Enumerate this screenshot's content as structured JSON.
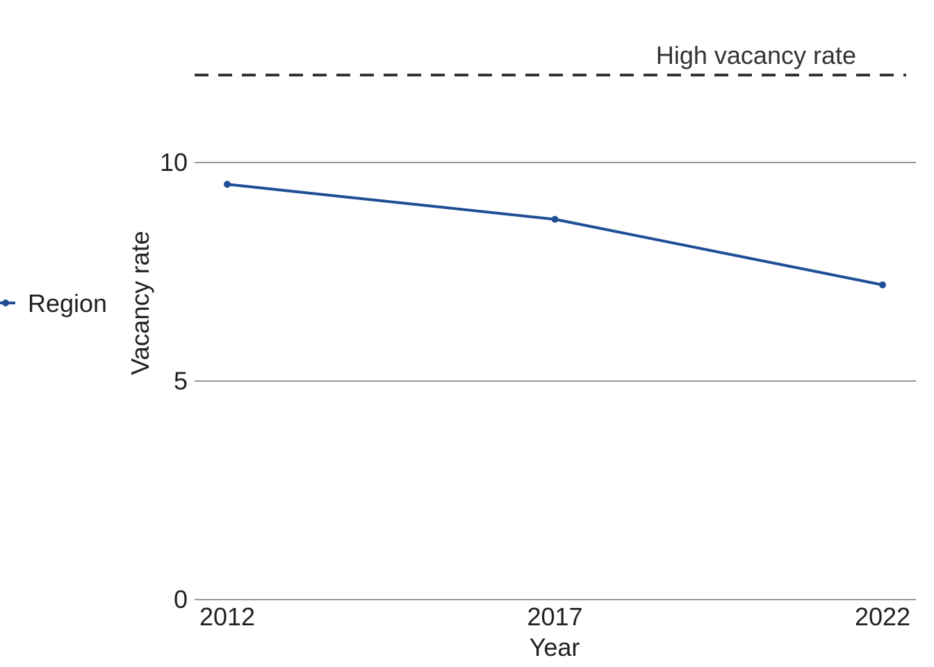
{
  "chart_data": {
    "type": "line",
    "xlabel": "Year",
    "ylabel": "Vacancy rate",
    "x": [
      2012,
      2017,
      2022
    ],
    "xticks": [
      "2012",
      "2017",
      "2022"
    ],
    "yticks": [
      "0",
      "5",
      "10"
    ],
    "ylim": [
      0,
      12
    ],
    "grid": "horizontal",
    "legend_position": "left",
    "series": [
      {
        "name": "Region",
        "color": "#1f4e96",
        "values": [
          9.5,
          8.7,
          7.2
        ]
      }
    ],
    "reference_line": {
      "label": "High vacancy rate",
      "value": 12,
      "style": "dashed",
      "color": "#333333"
    }
  }
}
